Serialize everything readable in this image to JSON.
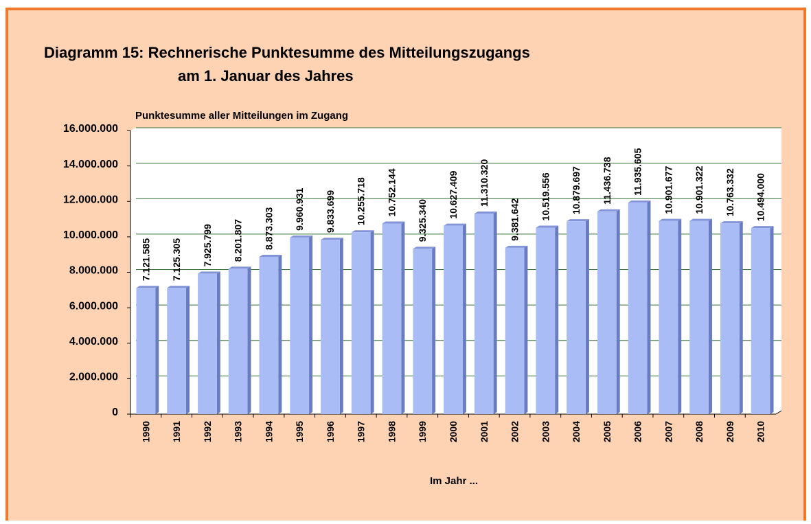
{
  "chart_data": {
    "type": "bar",
    "title": [
      "Diagramm 15:  Rechnerische Punktesumme des Mitteilungszugangs",
      "am 1. Januar des Jahres"
    ],
    "y_label": "Punktesumme aller Mitteilungen im Zugang",
    "x_label": "Im Jahr ...",
    "categories": [
      "1990",
      "1991",
      "1992",
      "1993",
      "1994",
      "1995",
      "1996",
      "1997",
      "1998",
      "1999",
      "2000",
      "2001",
      "2002",
      "2003",
      "2004",
      "2005",
      "2006",
      "2007",
      "2008",
      "2009",
      "2010"
    ],
    "values": [
      7121585,
      7125305,
      7925799,
      8201807,
      8873303,
      9960931,
      9833699,
      10255718,
      10752144,
      9325340,
      10627409,
      11310320,
      9381642,
      10519556,
      10879697,
      11436738,
      11935605,
      10901677,
      10901322,
      10763332,
      10494000
    ],
    "value_labels": [
      "7.121.585",
      "7.125.305",
      "7.925.799",
      "8.201.807",
      "8.873.303",
      "9.960.931",
      "9.833.699",
      "10.255.718",
      "10.752.144",
      "9.325.340",
      "10.627.409",
      "11.310.320",
      "9.381.642",
      "10.519.556",
      "10.879.697",
      "11.436.738",
      "11.935.605",
      "10.901.677",
      "10.901.322",
      "10.763.332",
      "10.494.000"
    ],
    "color": "#aabcf6",
    "ylim": [
      0,
      16000000
    ],
    "yticks": [
      0,
      {
        "value": 2000000,
        "label": "2.000.000"
      },
      {
        "value": 4000000,
        "label": "4.000.000"
      },
      {
        "value": 6000000,
        "label": "6.000.000"
      },
      {
        "value": 8000000,
        "label": "8.000.000"
      },
      {
        "value": 10000000,
        "label": "10.000.000"
      },
      {
        "value": 12000000,
        "label": "12.000.000"
      },
      {
        "value": 14000000,
        "label": "14.000.000"
      },
      {
        "value": 16000000,
        "label": "16.000.000"
      }
    ],
    "grid": true
  }
}
